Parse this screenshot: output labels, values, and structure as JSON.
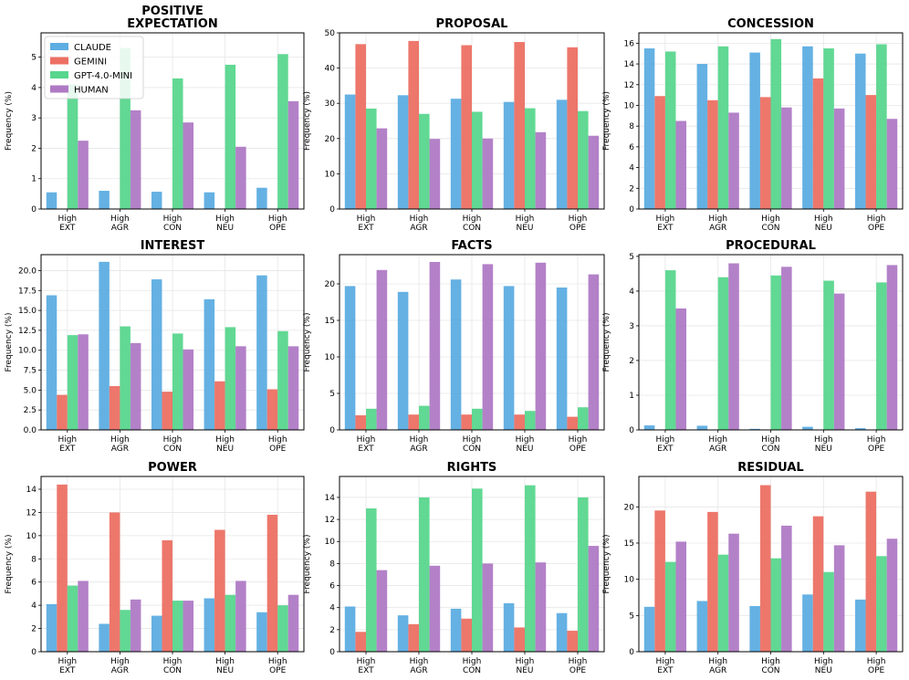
{
  "chart_data": [
    {
      "type": "bar",
      "title": "POSITIVE\nEXPECTATION",
      "ylabel": "Frequency (%)",
      "ylim": [
        0,
        5.8
      ],
      "yticks": [
        0,
        1,
        2,
        3,
        4,
        5
      ],
      "ytick_labels": [
        "0",
        "1",
        "2",
        "3",
        "4",
        "5"
      ],
      "categories": [
        "High\nEXT",
        "High\nAGR",
        "High\nCON",
        "High\nNEU",
        "High\nOPE"
      ],
      "series": [
        {
          "name": "CLAUDE",
          "values": [
            0.55,
            0.6,
            0.57,
            0.55,
            0.7
          ]
        },
        {
          "name": "GEMINI",
          "values": [
            0,
            0,
            0,
            0,
            0
          ]
        },
        {
          "name": "GPT-4.0-MINI",
          "values": [
            4.1,
            5.3,
            4.3,
            4.75,
            5.1
          ]
        },
        {
          "name": "HUMAN",
          "values": [
            2.25,
            3.25,
            2.85,
            2.05,
            3.55
          ]
        }
      ],
      "legend": {
        "position": "top-left",
        "entries": [
          "CLAUDE",
          "GEMINI",
          "GPT-4.0-MINI",
          "HUMAN"
        ]
      }
    },
    {
      "type": "bar",
      "title": "PROPOSAL",
      "ylabel": "Frequency (%)",
      "ylim": [
        0,
        50
      ],
      "yticks": [
        0,
        10,
        20,
        30,
        40,
        50
      ],
      "ytick_labels": [
        "0",
        "10",
        "20",
        "30",
        "40",
        "50"
      ],
      "categories": [
        "High\nEXT",
        "High\nAGR",
        "High\nCON",
        "High\nNEU",
        "High\nOPE"
      ],
      "series": [
        {
          "name": "CLAUDE",
          "values": [
            32.5,
            32.3,
            31.3,
            30.4,
            31
          ]
        },
        {
          "name": "GEMINI",
          "values": [
            46.8,
            47.7,
            46.5,
            47.4,
            45.9
          ]
        },
        {
          "name": "GPT-4.0-MINI",
          "values": [
            28.5,
            27,
            27.6,
            28.6,
            27.8
          ]
        },
        {
          "name": "HUMAN",
          "values": [
            22.9,
            19.9,
            20,
            21.8,
            20.8
          ]
        }
      ]
    },
    {
      "type": "bar",
      "title": "CONCESSION",
      "ylabel": "Frequency (%)",
      "ylim": [
        0,
        17
      ],
      "yticks": [
        0,
        2,
        4,
        6,
        8,
        10,
        12,
        14,
        16
      ],
      "ytick_labels": [
        "0",
        "2",
        "4",
        "6",
        "8",
        "10",
        "12",
        "14",
        "16"
      ],
      "categories": [
        "High\nEXT",
        "High\nAGR",
        "High\nCON",
        "High\nNEU",
        "High\nOPE"
      ],
      "series": [
        {
          "name": "CLAUDE",
          "values": [
            15.5,
            14,
            15.1,
            15.7,
            15
          ]
        },
        {
          "name": "GEMINI",
          "values": [
            10.9,
            10.5,
            10.8,
            12.6,
            11
          ]
        },
        {
          "name": "GPT-4.0-MINI",
          "values": [
            15.2,
            15.7,
            16.4,
            15.5,
            15.9
          ]
        },
        {
          "name": "HUMAN",
          "values": [
            8.5,
            9.3,
            9.8,
            9.7,
            8.7
          ]
        }
      ]
    },
    {
      "type": "bar",
      "title": "INTEREST",
      "ylabel": "Frequency (%)",
      "ylim": [
        0,
        22
      ],
      "yticks": [
        0,
        2.5,
        5,
        7.5,
        10,
        12.5,
        15,
        17.5,
        20
      ],
      "ytick_labels": [
        "0.0",
        "2.5",
        "5.0",
        "7.5",
        "10.0",
        "12.5",
        "15.0",
        "17.5",
        "20.0"
      ],
      "categories": [
        "High\nEXT",
        "High\nAGR",
        "High\nCON",
        "High\nNEU",
        "High\nOPE"
      ],
      "series": [
        {
          "name": "CLAUDE",
          "values": [
            16.9,
            21.1,
            18.9,
            16.4,
            19.4
          ]
        },
        {
          "name": "GEMINI",
          "values": [
            4.4,
            5.5,
            4.8,
            6.1,
            5.1
          ]
        },
        {
          "name": "GPT-4.0-MINI",
          "values": [
            11.9,
            13,
            12.1,
            12.9,
            12.4
          ]
        },
        {
          "name": "HUMAN",
          "values": [
            12,
            10.9,
            10.1,
            10.5,
            10.5
          ]
        }
      ]
    },
    {
      "type": "bar",
      "title": "FACTS",
      "ylabel": "Frequency (%)",
      "ylim": [
        0,
        24
      ],
      "yticks": [
        0,
        5,
        10,
        15,
        20
      ],
      "ytick_labels": [
        "0",
        "5",
        "10",
        "15",
        "20"
      ],
      "categories": [
        "High\nEXT",
        "High\nAGR",
        "High\nCON",
        "High\nNEU",
        "High\nOPE"
      ],
      "series": [
        {
          "name": "CLAUDE",
          "values": [
            19.7,
            18.9,
            20.6,
            19.7,
            19.5
          ]
        },
        {
          "name": "GEMINI",
          "values": [
            2,
            2.1,
            2.1,
            2.1,
            1.8
          ]
        },
        {
          "name": "GPT-4.0-MINI",
          "values": [
            2.9,
            3.3,
            2.9,
            2.6,
            3.1
          ]
        },
        {
          "name": "HUMAN",
          "values": [
            21.9,
            23,
            22.7,
            22.9,
            21.3
          ]
        }
      ]
    },
    {
      "type": "bar",
      "title": "PROCEDURAL",
      "ylabel": "Frequency (%)",
      "ylim": [
        0,
        5.05
      ],
      "yticks": [
        0,
        1,
        2,
        3,
        4,
        5
      ],
      "ytick_labels": [
        "0",
        "1",
        "2",
        "3",
        "4",
        "5"
      ],
      "categories": [
        "High\nEXT",
        "High\nAGR",
        "High\nCON",
        "High\nNEU",
        "High\nOPE"
      ],
      "series": [
        {
          "name": "CLAUDE",
          "values": [
            0.13,
            0.12,
            0.03,
            0.09,
            0.05
          ]
        },
        {
          "name": "GEMINI",
          "values": [
            0,
            0,
            0,
            0,
            0
          ]
        },
        {
          "name": "GPT-4.0-MINI",
          "values": [
            4.6,
            4.4,
            4.45,
            4.3,
            4.25
          ]
        },
        {
          "name": "HUMAN",
          "values": [
            3.5,
            4.8,
            4.7,
            3.93,
            4.75
          ]
        }
      ]
    },
    {
      "type": "bar",
      "title": "POWER",
      "ylabel": "Frequency (%)",
      "ylim": [
        0,
        15.1
      ],
      "yticks": [
        0,
        2,
        4,
        6,
        8,
        10,
        12,
        14
      ],
      "ytick_labels": [
        "0",
        "2",
        "4",
        "6",
        "8",
        "10",
        "12",
        "14"
      ],
      "categories": [
        "High\nEXT",
        "High\nAGR",
        "High\nCON",
        "High\nNEU",
        "High\nOPE"
      ],
      "series": [
        {
          "name": "CLAUDE",
          "values": [
            4.1,
            2.4,
            3.1,
            4.6,
            3.4
          ]
        },
        {
          "name": "GEMINI",
          "values": [
            14.4,
            12,
            9.6,
            10.5,
            11.8
          ]
        },
        {
          "name": "GPT-4.0-MINI",
          "values": [
            5.7,
            3.6,
            4.4,
            4.9,
            4
          ]
        },
        {
          "name": "HUMAN",
          "values": [
            6.1,
            4.5,
            4.4,
            6.1,
            4.9
          ]
        }
      ]
    },
    {
      "type": "bar",
      "title": "RIGHTS",
      "ylabel": "Frequency (%)",
      "ylim": [
        0,
        15.9
      ],
      "yticks": [
        0,
        2,
        4,
        6,
        8,
        10,
        12,
        14
      ],
      "ytick_labels": [
        "0",
        "2",
        "4",
        "6",
        "8",
        "10",
        "12",
        "14"
      ],
      "categories": [
        "High\nEXT",
        "High\nAGR",
        "High\nCON",
        "High\nNEU",
        "High\nOPE"
      ],
      "series": [
        {
          "name": "CLAUDE",
          "values": [
            4.1,
            3.3,
            3.9,
            4.4,
            3.5
          ]
        },
        {
          "name": "GEMINI",
          "values": [
            1.8,
            2.5,
            3,
            2.2,
            1.9
          ]
        },
        {
          "name": "GPT-4.0-MINI",
          "values": [
            13,
            14,
            14.8,
            15.1,
            14
          ]
        },
        {
          "name": "HUMAN",
          "values": [
            7.4,
            7.8,
            8,
            8.1,
            9.6
          ]
        }
      ]
    },
    {
      "type": "bar",
      "title": "RESIDUAL",
      "ylabel": "Frequency (%)",
      "ylim": [
        0,
        24.2
      ],
      "yticks": [
        0,
        5,
        10,
        15,
        20
      ],
      "ytick_labels": [
        "0",
        "5",
        "10",
        "15",
        "20"
      ],
      "categories": [
        "High\nEXT",
        "High\nAGR",
        "High\nCON",
        "High\nNEU",
        "High\nOPE"
      ],
      "series": [
        {
          "name": "CLAUDE",
          "values": [
            6.2,
            7,
            6.3,
            7.9,
            7.2
          ]
        },
        {
          "name": "GEMINI",
          "values": [
            19.5,
            19.3,
            23,
            18.7,
            22.1
          ]
        },
        {
          "name": "GPT-4.0-MINI",
          "values": [
            12.4,
            13.4,
            12.9,
            11,
            13.2
          ]
        },
        {
          "name": "HUMAN",
          "values": [
            15.2,
            16.3,
            17.4,
            14.7,
            15.6
          ]
        }
      ]
    }
  ],
  "colors": {
    "CLAUDE": "#5DADE2",
    "GEMINI": "#EC7063",
    "GPT-4.0-MINI": "#58D68D",
    "HUMAN": "#AF7AC5"
  }
}
